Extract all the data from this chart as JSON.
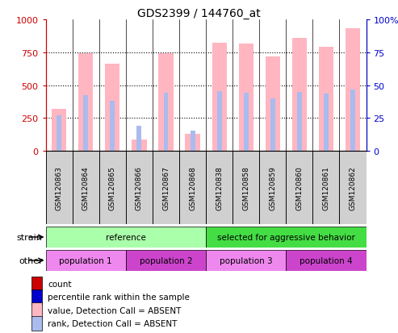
{
  "title": "GDS2399 / 144760_at",
  "samples": [
    "GSM120863",
    "GSM120864",
    "GSM120865",
    "GSM120866",
    "GSM120867",
    "GSM120868",
    "GSM120838",
    "GSM120858",
    "GSM120859",
    "GSM120860",
    "GSM120861",
    "GSM120862"
  ],
  "value_absent": [
    320,
    745,
    660,
    90,
    745,
    130,
    820,
    815,
    715,
    860,
    790,
    930
  ],
  "rank_absent": [
    270,
    425,
    380,
    190,
    440,
    155,
    455,
    445,
    400,
    450,
    435,
    465
  ],
  "ylim_left": [
    0,
    1000
  ],
  "ylim_right": [
    0,
    100
  ],
  "yticks_left": [
    0,
    250,
    500,
    750,
    1000
  ],
  "yticks_right": [
    0,
    25,
    50,
    75,
    100
  ],
  "ytick_labels_left": [
    "0",
    "250",
    "500",
    "750",
    "1000"
  ],
  "ytick_labels_right": [
    "0",
    "25",
    "50",
    "75",
    "100%"
  ],
  "strain_groups": [
    {
      "label": "reference",
      "start": 0,
      "end": 6,
      "color": "#aaffaa"
    },
    {
      "label": "selected for aggressive behavior",
      "start": 6,
      "end": 12,
      "color": "#44dd44"
    }
  ],
  "other_groups": [
    {
      "label": "population 1",
      "start": 0,
      "end": 3,
      "color": "#ee88ee"
    },
    {
      "label": "population 2",
      "start": 3,
      "end": 6,
      "color": "#cc44cc"
    },
    {
      "label": "population 3",
      "start": 6,
      "end": 9,
      "color": "#ee88ee"
    },
    {
      "label": "population 4",
      "start": 9,
      "end": 12,
      "color": "#cc44cc"
    }
  ],
  "color_value_absent": "#ffb6c1",
  "color_rank_absent": "#aabbee",
  "color_count": "#cc0000",
  "color_percentile": "#0000cc",
  "grid_color": "#000000",
  "bg_color": "#ffffff",
  "axis_color_left": "#cc0000",
  "axis_color_right": "#0000cc",
  "label_strain": "strain",
  "label_other": "other",
  "legend_items": [
    {
      "label": "count",
      "color": "#cc0000"
    },
    {
      "label": "percentile rank within the sample",
      "color": "#0000cc"
    },
    {
      "label": "value, Detection Call = ABSENT",
      "color": "#ffb6c1"
    },
    {
      "label": "rank, Detection Call = ABSENT",
      "color": "#aabbee"
    }
  ]
}
